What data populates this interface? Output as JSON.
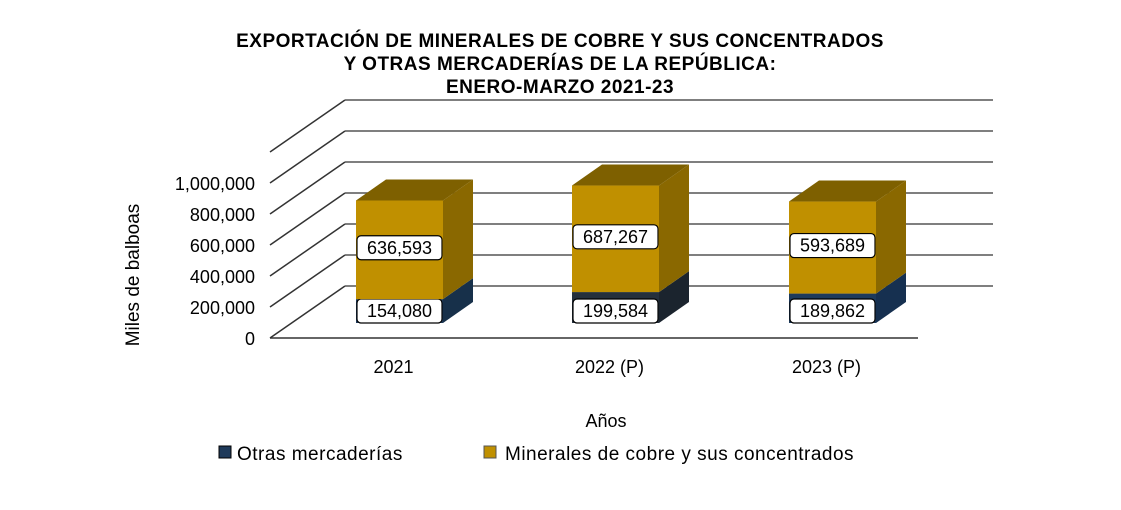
{
  "chart_data": {
    "type": "bar",
    "stacked": true,
    "three_d": true,
    "title": [
      "EXPORTACIÓN DE MINERALES DE COBRE Y SUS CONCENTRADOS",
      "Y OTRAS MERCADERÍAS DE LA REPÚBLICA:",
      "ENERO-MARZO 2021-23"
    ],
    "xlabel": "Años",
    "ylabel": "Miles de balboas",
    "ylim": [
      0,
      1000000
    ],
    "yticks": [
      "0",
      "200,000",
      "400,000",
      "600,000",
      "800,000",
      "1,000,000"
    ],
    "ytick_values": [
      0,
      200000,
      400000,
      600000,
      800000,
      1000000
    ],
    "categories": [
      "2021",
      "2022 (P)",
      "2023 (P)"
    ],
    "series": [
      {
        "name": "Otras mercaderías",
        "color": "#1F3A5A",
        "values": [
          154080,
          199584,
          189862
        ],
        "labels": [
          "154,080",
          "199,584",
          "189,862"
        ]
      },
      {
        "name": "Minerales de cobre y sus concentrados",
        "color": "#C09000",
        "values": [
          636593,
          687267,
          593689
        ],
        "labels": [
          "636,593",
          "687,267",
          "593,689"
        ]
      }
    ],
    "grid": true,
    "legend_position": "bottom"
  }
}
